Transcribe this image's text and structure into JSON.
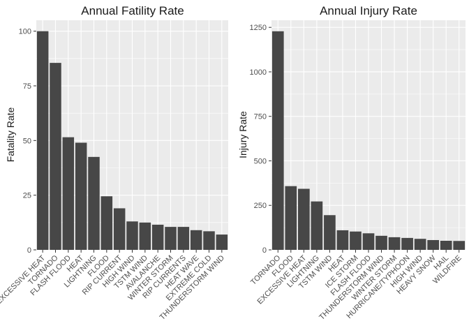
{
  "chart_data": [
    {
      "type": "bar",
      "title": "Annual Fatility Rate",
      "xlabel": "",
      "ylabel": "Fatality Rate",
      "ylim": [
        0,
        105
      ],
      "yticks": [
        0,
        25,
        50,
        75,
        100
      ],
      "grid": true,
      "categories": [
        "EXCESSIVE HEAT",
        "TORNADO",
        "FLASH FLOOD",
        "HEAT",
        "LIGHTNING",
        "FLOOD",
        "RIP CURRENT",
        "HIGH WIND",
        "TSTM WIND",
        "AVALANCHE",
        "WINTER STORM",
        "RIP CURRENTS",
        "HEAT WAVE",
        "EXTREME COLD",
        "THUNDERSTORM WIND"
      ],
      "values": [
        100,
        85.5,
        51.5,
        49,
        42.5,
        24.5,
        19,
        13,
        12.5,
        11.5,
        10.5,
        10.5,
        9,
        8.5,
        7
      ]
    },
    {
      "type": "bar",
      "title": "Annual Injury Rate",
      "xlabel": "",
      "ylabel": "Injury Rate",
      "ylim": [
        0,
        1290
      ],
      "yticks": [
        0,
        250,
        500,
        750,
        1000,
        1250
      ],
      "grid": true,
      "categories": [
        "TORNADO",
        "FLOOD",
        "EXCESSIVE HEAT",
        "LIGHTNING",
        "TSTM WIND",
        "HEAT",
        "ICE STORM",
        "FLASH FLOOD",
        "THUNDERSTORM WIND",
        "WINTER STORM",
        "HURRICANE/TYPHOON",
        "HIGH WIND",
        "HEAVY SNOW",
        "HAIL",
        "WILDFIRE"
      ],
      "values": [
        1228,
        358,
        343,
        272,
        195,
        110,
        103,
        93,
        79,
        71,
        67,
        62,
        55,
        51,
        50
      ]
    }
  ]
}
